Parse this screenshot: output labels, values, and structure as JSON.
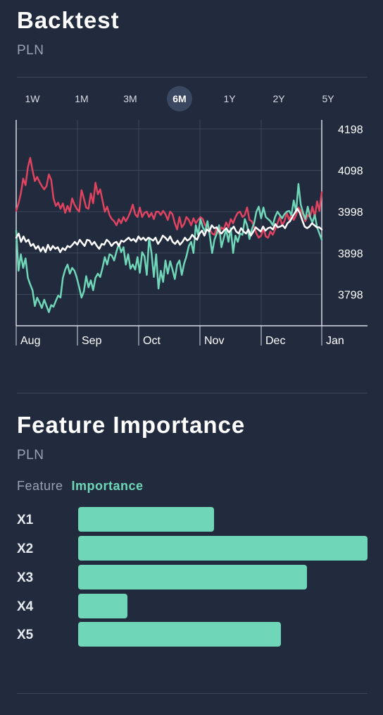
{
  "backtest": {
    "title": "Backtest",
    "subtitle": "PLN",
    "range_tabs": [
      "1W",
      "1M",
      "3M",
      "6M",
      "1Y",
      "2Y",
      "5Y"
    ],
    "active_range": "6M"
  },
  "chart_data": {
    "type": "line",
    "months": [
      "Aug",
      "Sep",
      "Oct",
      "Nov",
      "Dec",
      "Jan"
    ],
    "y_ticks": [
      4198,
      4098,
      3998,
      3898,
      3798
    ],
    "ylim": [
      3722,
      4220
    ],
    "grid": true,
    "series": [
      {
        "color": "#e0435f",
        "values": [
          4000,
          4018,
          4042,
          4078,
          4062,
          4105,
          4128,
          4098,
          4072,
          4082,
          4070,
          4060,
          4052,
          4060,
          4088,
          4075,
          4030,
          4012,
          4020,
          4005,
          4018,
          3995,
          4012,
          3998,
          4030,
          4015,
          4005,
          3998,
          4050,
          4030,
          4008,
          4005,
          4042,
          4018,
          4068,
          4040,
          4052,
          4025,
          3998,
          4010,
          3990,
          3980,
          3975,
          3965,
          3980,
          3970,
          3985,
          3975,
          3985,
          3998,
          4015,
          3992,
          3985,
          4008,
          3985,
          3995,
          3998,
          3985,
          3995,
          3980,
          3998,
          3998,
          3990,
          4000,
          3992,
          3978,
          3998,
          3992,
          3970,
          3955,
          3985,
          3960,
          3968,
          3985,
          3978,
          3965,
          3982,
          3970,
          3978,
          3985,
          3980,
          3965,
          3960,
          3955,
          3945,
          3942,
          3960,
          3945,
          3960,
          3955,
          3972,
          3960,
          3980,
          3970,
          3985,
          3995,
          3998,
          3985,
          3990,
          4008,
          3978,
          3975,
          3962,
          3945,
          3935,
          3940,
          3958,
          3938,
          3935,
          3950,
          3942,
          3955,
          3970,
          3985,
          3965,
          3975,
          3995,
          3978,
          3992,
          3978,
          3990,
          4008,
          4000,
          3990,
          3975,
          3990,
          3985,
          4010,
          3985,
          4023,
          4000,
          4045
        ]
      },
      {
        "color": "#6fd6b8",
        "values": [
          3952,
          3855,
          3895,
          3862,
          3885,
          3838,
          3822,
          3808,
          3770,
          3790,
          3778,
          3765,
          3785,
          3770,
          3755,
          3772,
          3768,
          3782,
          3795,
          3790,
          3838,
          3858,
          3870,
          3848,
          3862,
          3855,
          3838,
          3815,
          3790,
          3805,
          3842,
          3815,
          3832,
          3808,
          3838,
          3848,
          3840,
          3862,
          3888,
          3870,
          3895,
          3892,
          3880,
          3902,
          3920,
          3900,
          3912,
          3870,
          3895,
          3860,
          3870,
          3858,
          3888,
          3850,
          3900,
          3890,
          3845,
          3935,
          3898,
          3840,
          3895,
          3812,
          3855,
          3828,
          3880,
          3848,
          3878,
          3858,
          3835,
          3870,
          3880,
          3845,
          3872,
          3890,
          3915,
          3925,
          3898,
          3965,
          3942,
          3980,
          3960,
          3950,
          3975,
          3940,
          3898,
          3930,
          3945,
          3965,
          3912,
          3935,
          3955,
          3925,
          3958,
          3898,
          3940,
          3925,
          3945,
          3942,
          3980,
          3965,
          3932,
          3955,
          3970,
          3998,
          4010,
          3982,
          4008,
          3985,
          3980,
          3975,
          3965,
          3985,
          3998,
          3990,
          3982,
          3992,
          3998,
          4000,
          3990,
          4025,
          3998,
          4065,
          4015,
          3995,
          3980,
          4010,
          3985,
          3972,
          3990,
          3960,
          3945,
          3930
        ]
      },
      {
        "color": "#ffffff",
        "values": [
          3935,
          3945,
          3925,
          3938,
          3925,
          3930,
          3915,
          3920,
          3908,
          3915,
          3902,
          3912,
          3900,
          3918,
          3905,
          3915,
          3908,
          3912,
          3900,
          3910,
          3905,
          3915,
          3912,
          3918,
          3925,
          3918,
          3930,
          3922,
          3915,
          3930,
          3928,
          3918,
          3925,
          3915,
          3908,
          3920,
          3918,
          3930,
          3925,
          3915,
          3922,
          3925,
          3915,
          3928,
          3925,
          3930,
          3935,
          3928,
          3932,
          3925,
          3938,
          3930,
          3935,
          3928,
          3935,
          3932,
          3928,
          3935,
          3920,
          3928,
          3940,
          3935,
          3928,
          3938,
          3925,
          3920,
          3928,
          3918,
          3925,
          3935,
          3928,
          3932,
          3942,
          3935,
          3930,
          3945,
          3952,
          3940,
          3955,
          3950,
          3965,
          3958,
          3960,
          3950,
          3945,
          3952,
          3958,
          3948,
          3955,
          3962,
          3950,
          3945,
          3958,
          3950,
          3945,
          3955,
          3940,
          3950,
          3960,
          3955,
          3950,
          3962,
          3952,
          3958,
          3960,
          3955,
          3968,
          3960,
          3962,
          3965,
          3958,
          3970,
          3975,
          3985,
          3995,
          4005,
          3995,
          3978,
          3962,
          3958,
          3962,
          3970,
          3965,
          3960,
          3960,
          3955
        ]
      }
    ]
  },
  "feature_importance": {
    "title": "Feature Importance",
    "subtitle": "PLN",
    "col_feature": "Feature",
    "col_importance": "Importance",
    "rows": [
      {
        "label": "X1",
        "value": 0.47
      },
      {
        "label": "X2",
        "value": 1.0
      },
      {
        "label": "X3",
        "value": 0.79
      },
      {
        "label": "X4",
        "value": 0.17
      },
      {
        "label": "X5",
        "value": 0.7
      }
    ]
  }
}
